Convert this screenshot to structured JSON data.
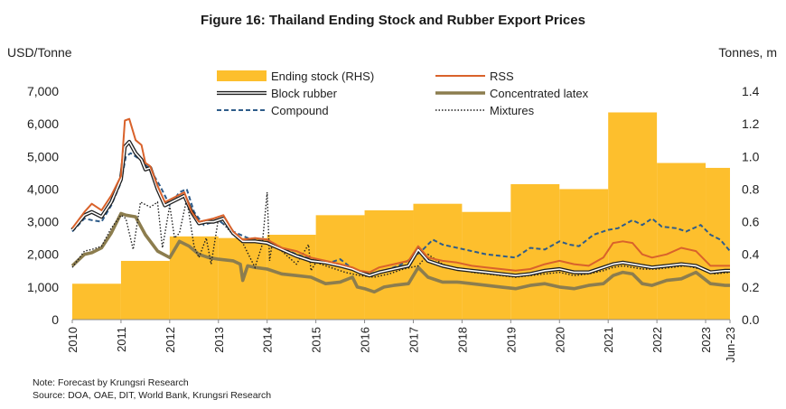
{
  "chart_data": {
    "type": "bar+line",
    "title": "Figure 16: Thailand  Ending Stock and Rubber Export Prices",
    "ylabel_left": "USD/Tonne",
    "ylabel_right": "Tonnes, m",
    "ylim_left": [
      0,
      7000
    ],
    "ylim_right": [
      0,
      1.4
    ],
    "yticks_left": [
      "7,000",
      "6,000",
      "5,000",
      "4,000",
      "3,000",
      "2,000",
      "1,000",
      "0"
    ],
    "yticks_right": [
      "1.4",
      "1.2",
      "1.0",
      "0.8",
      "0.6",
      "0.4",
      "0.2",
      "0.0"
    ],
    "xlim": [
      2010,
      2023.5
    ],
    "xticks": [
      "2010",
      "2011",
      "2012",
      "2013",
      "2014",
      "2015",
      "2016",
      "2017",
      "2018",
      "2019",
      "2020",
      "2021",
      "2022",
      "2023",
      "Jun-23"
    ],
    "legend_position": "top",
    "ending_stock": {
      "name": "Ending stock (RHS)",
      "color": "#FDBF2D",
      "axis": "right",
      "years": [
        2010,
        2011,
        2012,
        2013,
        2014,
        2015,
        2016,
        2017,
        2018,
        2019,
        2020,
        2021,
        2022,
        2023
      ],
      "values": [
        0.22,
        0.36,
        0.51,
        0.5,
        0.52,
        0.64,
        0.67,
        0.71,
        0.66,
        0.83,
        0.8,
        1.27,
        0.96,
        0.93
      ]
    },
    "series": [
      {
        "name": "Ending stock (RHS)",
        "style": "bar"
      },
      {
        "name": "RSS",
        "color": "#D9622B",
        "style": "solid",
        "x": [
          2010.0,
          2010.25,
          2010.4,
          2010.6,
          2010.8,
          2011.0,
          2011.08,
          2011.17,
          2011.3,
          2011.42,
          2011.5,
          2011.6,
          2011.75,
          2011.9,
          2012.1,
          2012.3,
          2012.45,
          2012.6,
          2012.75,
          2012.9,
          2013.1,
          2013.3,
          2013.5,
          2013.75,
          2014.0,
          2014.3,
          2014.6,
          2014.9,
          2015.2,
          2015.5,
          2015.75,
          2015.9,
          2016.1,
          2016.3,
          2016.6,
          2016.9,
          2017.1,
          2017.3,
          2017.6,
          2017.9,
          2018.2,
          2018.5,
          2018.8,
          2019.1,
          2019.4,
          2019.7,
          2020.0,
          2020.3,
          2020.6,
          2020.9,
          2021.1,
          2021.3,
          2021.5,
          2021.7,
          2021.9,
          2022.2,
          2022.5,
          2022.8,
          2023.1,
          2023.4,
          2023.5
        ],
        "y": [
          2800,
          3300,
          3550,
          3350,
          3800,
          4400,
          6100,
          6150,
          5500,
          5350,
          4800,
          4700,
          4100,
          3600,
          3750,
          3900,
          3300,
          3000,
          3050,
          3100,
          3200,
          2700,
          2450,
          2500,
          2450,
          2200,
          2100,
          1900,
          1800,
          1700,
          1600,
          1500,
          1450,
          1600,
          1700,
          1800,
          2250,
          1900,
          1800,
          1750,
          1650,
          1600,
          1550,
          1500,
          1550,
          1700,
          1800,
          1700,
          1650,
          1900,
          2350,
          2400,
          2350,
          2000,
          1900,
          2000,
          2200,
          2100,
          1650,
          1650,
          1650
        ]
      },
      {
        "name": "Block rubber",
        "color": "#1F1F1F",
        "style": "double",
        "x": [
          2010.0,
          2010.25,
          2010.4,
          2010.6,
          2010.8,
          2011.0,
          2011.08,
          2011.17,
          2011.3,
          2011.42,
          2011.5,
          2011.6,
          2011.75,
          2011.9,
          2012.1,
          2012.3,
          2012.45,
          2012.6,
          2012.75,
          2012.9,
          2013.1,
          2013.3,
          2013.5,
          2013.75,
          2014.0,
          2014.3,
          2014.6,
          2014.9,
          2015.2,
          2015.5,
          2015.75,
          2015.9,
          2016.1,
          2016.3,
          2016.6,
          2016.9,
          2017.1,
          2017.3,
          2017.6,
          2017.9,
          2018.2,
          2018.5,
          2018.8,
          2019.1,
          2019.4,
          2019.7,
          2020.0,
          2020.3,
          2020.6,
          2020.9,
          2021.1,
          2021.3,
          2021.5,
          2021.7,
          2021.9,
          2022.2,
          2022.5,
          2022.8,
          2023.1,
          2023.4,
          2023.5
        ],
        "y": [
          2750,
          3200,
          3300,
          3150,
          3600,
          4300,
          5300,
          5450,
          5100,
          4900,
          4600,
          4650,
          4000,
          3500,
          3650,
          3800,
          3300,
          2950,
          3000,
          3000,
          3100,
          2650,
          2400,
          2400,
          2350,
          2150,
          1950,
          1800,
          1750,
          1650,
          1550,
          1450,
          1350,
          1450,
          1550,
          1650,
          2150,
          1800,
          1650,
          1550,
          1500,
          1450,
          1400,
          1350,
          1400,
          1500,
          1550,
          1450,
          1450,
          1600,
          1700,
          1750,
          1700,
          1650,
          1600,
          1650,
          1700,
          1650,
          1450,
          1500,
          1500
        ]
      },
      {
        "name": "Concentrated latex",
        "color": "#8C7D4E",
        "style": "thick",
        "x": [
          2010.0,
          2010.25,
          2010.4,
          2010.6,
          2010.8,
          2011.0,
          2011.1,
          2011.3,
          2011.5,
          2011.75,
          2012.0,
          2012.2,
          2012.4,
          2012.6,
          2012.8,
          2013.0,
          2013.3,
          2013.45,
          2013.5,
          2013.6,
          2013.75,
          2014.0,
          2014.3,
          2014.6,
          2014.9,
          2015.2,
          2015.5,
          2015.75,
          2015.85,
          2016.0,
          2016.2,
          2016.4,
          2016.6,
          2016.9,
          2017.1,
          2017.3,
          2017.6,
          2017.9,
          2018.2,
          2018.5,
          2018.8,
          2019.1,
          2019.4,
          2019.7,
          2020.0,
          2020.3,
          2020.6,
          2020.9,
          2021.1,
          2021.3,
          2021.5,
          2021.7,
          2021.9,
          2022.2,
          2022.5,
          2022.8,
          2023.1,
          2023.4,
          2023.5
        ],
        "y": [
          1650,
          2000,
          2050,
          2200,
          2650,
          3250,
          3200,
          3150,
          2600,
          2100,
          1900,
          2400,
          2250,
          2000,
          1900,
          1850,
          1800,
          1700,
          1200,
          1650,
          1600,
          1550,
          1400,
          1350,
          1300,
          1100,
          1150,
          1300,
          1000,
          950,
          850,
          1000,
          1050,
          1100,
          1600,
          1300,
          1150,
          1150,
          1100,
          1050,
          1000,
          950,
          1050,
          1100,
          1000,
          950,
          1050,
          1100,
          1350,
          1450,
          1400,
          1100,
          1050,
          1200,
          1250,
          1450,
          1100,
          1050,
          1050
        ]
      },
      {
        "name": "Compound",
        "color": "#2E5C8A",
        "style": "dashed",
        "x": [
          2010.0,
          2010.25,
          2010.4,
          2010.6,
          2010.8,
          2011.0,
          2011.1,
          2011.2,
          2011.4,
          2011.6,
          2011.8,
          2012.0,
          2012.2,
          2012.35,
          2012.5,
          2012.7,
          2013.0,
          2013.3,
          2013.6,
          2014.0,
          2014.3,
          2014.6,
          2014.9,
          2015.2,
          2015.5,
          2015.8,
          2016.1,
          2016.4,
          2016.7,
          2017.0,
          2017.2,
          2017.4,
          2017.6,
          2017.9,
          2018.2,
          2018.5,
          2018.8,
          2019.1,
          2019.4,
          2019.7,
          2020.0,
          2020.2,
          2020.4,
          2020.7,
          2021.0,
          2021.2,
          2021.5,
          2021.7,
          2021.9,
          2022.1,
          2022.4,
          2022.6,
          2022.9,
          2023.1,
          2023.3,
          2023.5
        ],
        "y": [
          2700,
          3100,
          3050,
          3000,
          3500,
          4200,
          5000,
          5100,
          4900,
          4600,
          4100,
          3500,
          3900,
          4000,
          3300,
          2900,
          3050,
          2700,
          2500,
          2450,
          2200,
          2000,
          1850,
          1700,
          1850,
          1500,
          1400,
          1500,
          1650,
          1900,
          2150,
          2450,
          2300,
          2200,
          2100,
          2000,
          1950,
          1900,
          2200,
          2150,
          2400,
          2300,
          2250,
          2600,
          2750,
          2800,
          3050,
          2900,
          3100,
          2850,
          2800,
          2700,
          2900,
          2600,
          2450,
          2100
        ]
      },
      {
        "name": "Mixtures",
        "color": "#1F1F1F",
        "style": "dotted",
        "x": [
          2010.0,
          2010.25,
          2010.4,
          2010.6,
          2010.8,
          2011.0,
          2011.1,
          2011.25,
          2011.4,
          2011.6,
          2011.75,
          2011.85,
          2012.0,
          2012.1,
          2012.2,
          2012.35,
          2012.5,
          2012.6,
          2012.75,
          2012.85,
          2013.0,
          2013.3,
          2013.5,
          2013.75,
          2013.9,
          2014.0,
          2014.05,
          2014.1,
          2014.3,
          2014.6,
          2014.85,
          2014.9,
          2015.0,
          2015.3,
          2015.6,
          2015.9,
          2016.2,
          2016.5,
          2016.8,
          2017.1,
          2017.3,
          2017.6,
          2017.9,
          2018.2,
          2018.5,
          2018.8,
          2019.1,
          2019.4,
          2019.7,
          2020.0,
          2020.3,
          2020.6,
          2020.9,
          2021.1,
          2021.3,
          2021.5,
          2021.7,
          2022.0,
          2022.3,
          2022.6,
          2022.9,
          2023.2,
          2023.5
        ],
        "y": [
          1600,
          2100,
          2150,
          2250,
          2800,
          3200,
          3100,
          2150,
          3600,
          3450,
          3600,
          2200,
          3500,
          2500,
          2650,
          3700,
          2250,
          1900,
          2500,
          1700,
          3100,
          2600,
          2350,
          1600,
          2300,
          3900,
          1800,
          2300,
          2100,
          1700,
          2300,
          1500,
          1750,
          1600,
          1450,
          1350,
          1300,
          1400,
          1550,
          1650,
          2000,
          1700,
          1550,
          1450,
          1400,
          1350,
          1300,
          1350,
          1400,
          1450,
          1350,
          1400,
          1500,
          1600,
          1650,
          1600,
          1550,
          1550,
          1600,
          1650,
          1550,
          1400,
          1450
        ]
      }
    ]
  },
  "notes": {
    "note": "Note: Forecast by Krungsri Research",
    "source": "Source: DOA, OAE, DIT, World Bank, Krungsri Research"
  }
}
